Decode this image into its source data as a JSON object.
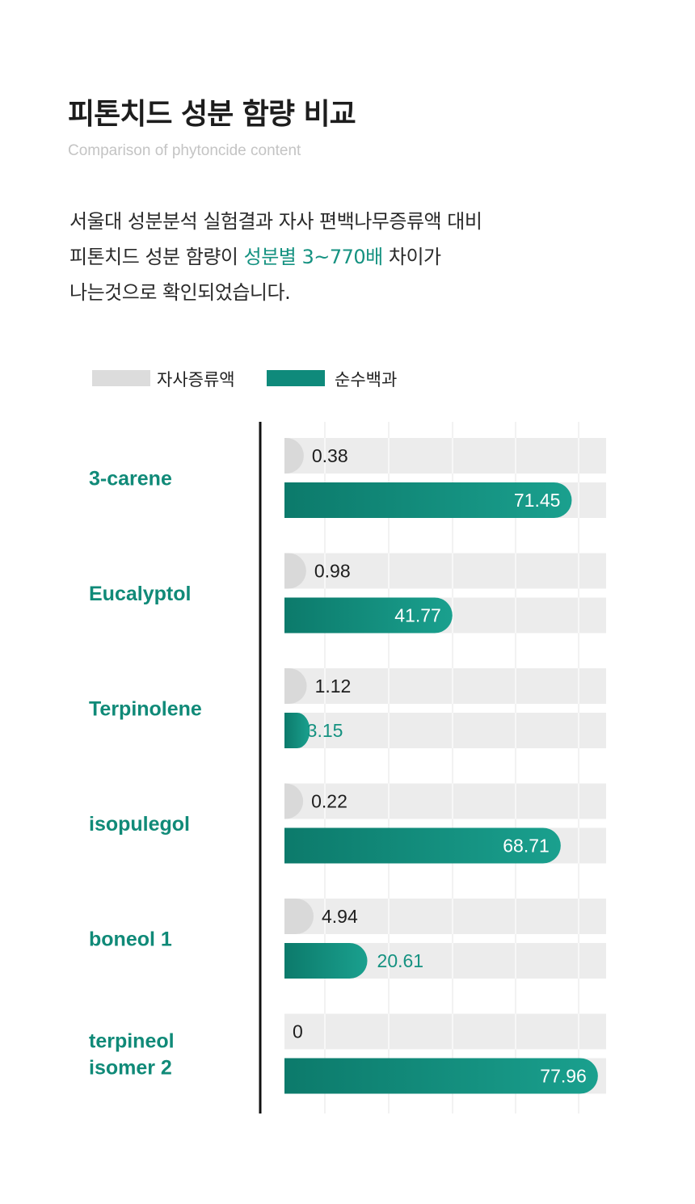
{
  "header": {
    "title": "피톤치드 성분 함량 비교",
    "subtitle": "Comparison of phytoncide content"
  },
  "description": {
    "line1": "서울대 성분분석 실험결과 자사 편백나무증류액 대비",
    "line2_prefix": "피톤치드 성분 함량이 ",
    "line2_highlight": "성분별 3~770배",
    "line2_suffix": " 차이가",
    "line3": "나는것으로 확인되었습니다."
  },
  "legend": {
    "items": [
      {
        "label": "자사증류액",
        "color": "#dcdcdc"
      },
      {
        "label": "순수백과",
        "color": "#0f8a7b"
      }
    ]
  },
  "colors": {
    "accent": "#159281",
    "accent_dark": "#0c7a6b",
    "accent_light": "#1aa08e",
    "track": "#ececec",
    "gray_bar": "#d9d9d9",
    "axis": "#111111",
    "grid": "#ffffff"
  },
  "chart_data": {
    "type": "bar",
    "orientation": "horizontal",
    "categories": [
      [
        "3-carene"
      ],
      [
        "Eucalyptol"
      ],
      [
        "Terpinolene"
      ],
      [
        "isopulegol"
      ],
      [
        "boneol 1"
      ],
      [
        "terpineol",
        "isomer 2"
      ]
    ],
    "series": [
      {
        "name": "자사증류액",
        "values": [
          0.38,
          0.98,
          1.12,
          0.22,
          4.94,
          0
        ]
      },
      {
        "name": "순수백과",
        "values": [
          71.45,
          41.77,
          3.15,
          68.71,
          20.61,
          77.96
        ]
      }
    ],
    "value_labels": {
      "series0": [
        "0.38",
        "0.98",
        "1.12",
        "0.22",
        "4.94",
        "0"
      ],
      "series1": [
        "71.45",
        "41.77",
        "3.15",
        "68.71",
        "20.61",
        "77.96"
      ]
    },
    "xlim": [
      0,
      80
    ],
    "grid": true,
    "legend_position": "top-left"
  }
}
